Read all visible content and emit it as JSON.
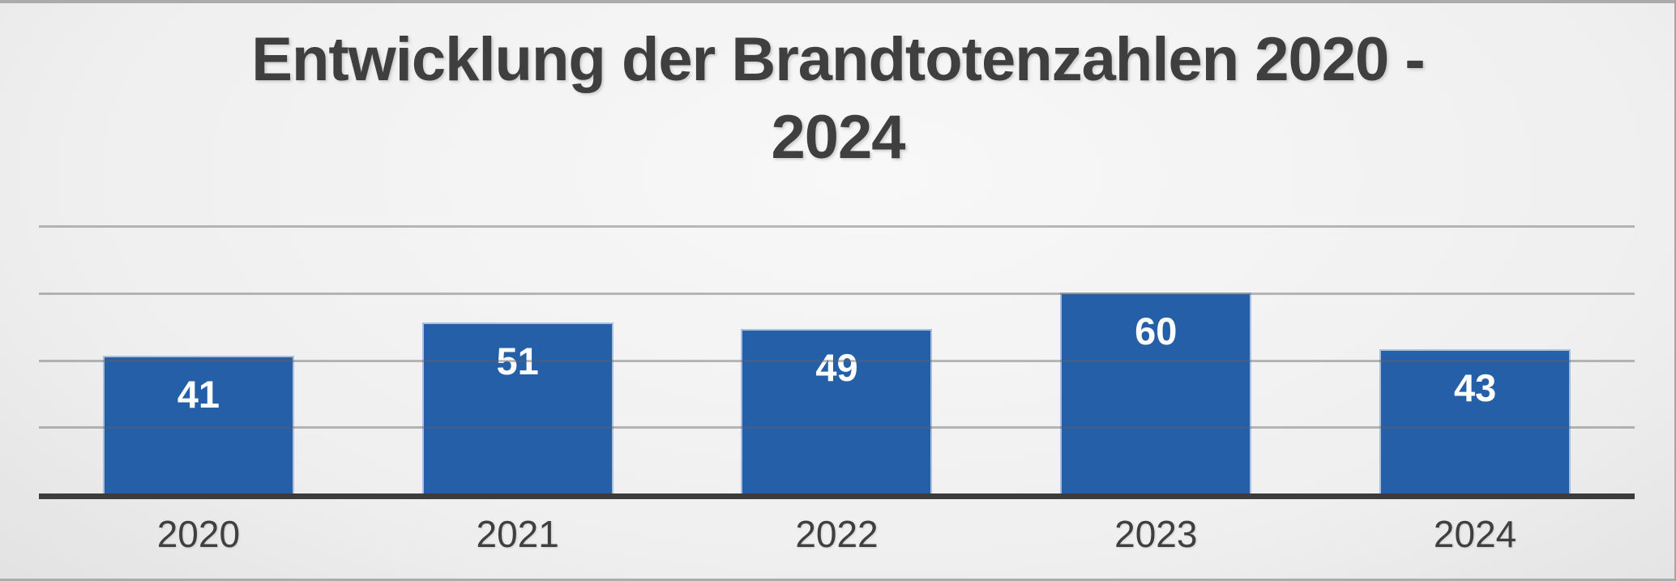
{
  "chart_data": {
    "type": "bar",
    "title": "Entwicklung der Brandtotenzahlen 2020 - 2024",
    "title_lines": [
      "Entwicklung der Brandtotenzahlen 2020 -",
      "2024"
    ],
    "categories": [
      "2020",
      "2021",
      "2022",
      "2023",
      "2024"
    ],
    "values": [
      41,
      51,
      49,
      60,
      43
    ],
    "bar_labels": [
      "41",
      "51",
      "49",
      "60",
      "43"
    ],
    "xlabel": "",
    "ylabel": "",
    "ylim": [
      0,
      80
    ],
    "gridline_values": [
      20,
      40,
      60,
      80
    ],
    "grid": true,
    "legend": false,
    "colors": {
      "bar_fill": "#255FA8",
      "bar_border": "#A9BFDD",
      "axis": "#3C3C3C",
      "gridline": "rgba(95,95,95,0.42)",
      "title_text": "#3F3F3F",
      "axis_label_text": "#3F3F3F",
      "value_label_text": "#FFFFFF"
    }
  }
}
